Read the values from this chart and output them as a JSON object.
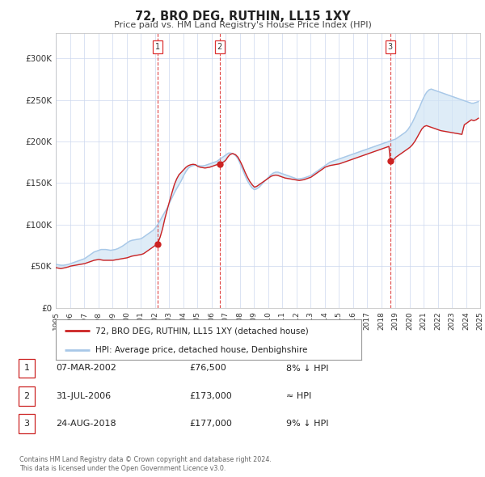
{
  "title": "72, BRO DEG, RUTHIN, LL15 1XY",
  "subtitle": "Price paid vs. HM Land Registry's House Price Index (HPI)",
  "hpi_color": "#a8c8e8",
  "price_color": "#cc2222",
  "background_color": "#ffffff",
  "plot_bg_color": "#ffffff",
  "grid_color": "#ccd8ee",
  "ylim": [
    0,
    330000
  ],
  "yticks": [
    0,
    50000,
    100000,
    150000,
    200000,
    250000,
    300000
  ],
  "ytick_labels": [
    "£0",
    "£50K",
    "£100K",
    "£150K",
    "£200K",
    "£250K",
    "£300K"
  ],
  "sale_dates_num": [
    2002.19,
    2006.58,
    2018.65
  ],
  "sale_prices": [
    76500,
    173000,
    177000
  ],
  "vline_x": [
    2002.19,
    2006.58,
    2018.65
  ],
  "vline_labels": [
    "1",
    "2",
    "3"
  ],
  "legend_line1": "72, BRO DEG, RUTHIN, LL15 1XY (detached house)",
  "legend_line2": "HPI: Average price, detached house, Denbighshire",
  "table_rows": [
    {
      "num": "1",
      "date": "07-MAR-2002",
      "price": "£76,500",
      "rel": "8% ↓ HPI"
    },
    {
      "num": "2",
      "date": "31-JUL-2006",
      "price": "£173,000",
      "rel": "≈ HPI"
    },
    {
      "num": "3",
      "date": "24-AUG-2018",
      "price": "£177,000",
      "rel": "9% ↓ HPI"
    }
  ],
  "footnote1": "Contains HM Land Registry data © Crown copyright and database right 2024.",
  "footnote2": "This data is licensed under the Open Government Licence v3.0.",
  "hpi_data_years": [
    1995.04,
    1995.21,
    1995.38,
    1995.54,
    1995.71,
    1995.88,
    1996.04,
    1996.21,
    1996.38,
    1996.54,
    1996.71,
    1996.88,
    1997.04,
    1997.21,
    1997.38,
    1997.54,
    1997.71,
    1997.88,
    1998.04,
    1998.21,
    1998.38,
    1998.54,
    1998.71,
    1998.88,
    1999.04,
    1999.21,
    1999.38,
    1999.54,
    1999.71,
    1999.88,
    2000.04,
    2000.21,
    2000.38,
    2000.54,
    2000.71,
    2000.88,
    2001.04,
    2001.21,
    2001.38,
    2001.54,
    2001.71,
    2001.88,
    2002.04,
    2002.21,
    2002.38,
    2002.54,
    2002.71,
    2002.88,
    2003.04,
    2003.21,
    2003.38,
    2003.54,
    2003.71,
    2003.88,
    2004.04,
    2004.21,
    2004.38,
    2004.54,
    2004.71,
    2004.88,
    2005.04,
    2005.21,
    2005.38,
    2005.54,
    2005.71,
    2005.88,
    2006.04,
    2006.21,
    2006.38,
    2006.54,
    2006.71,
    2006.88,
    2007.04,
    2007.21,
    2007.38,
    2007.54,
    2007.71,
    2007.88,
    2008.04,
    2008.21,
    2008.38,
    2008.54,
    2008.71,
    2008.88,
    2009.04,
    2009.21,
    2009.38,
    2009.54,
    2009.71,
    2009.88,
    2010.04,
    2010.21,
    2010.38,
    2010.54,
    2010.71,
    2010.88,
    2011.04,
    2011.21,
    2011.38,
    2011.54,
    2011.71,
    2011.88,
    2012.04,
    2012.21,
    2012.38,
    2012.54,
    2012.71,
    2012.88,
    2013.04,
    2013.21,
    2013.38,
    2013.54,
    2013.71,
    2013.88,
    2014.04,
    2014.21,
    2014.38,
    2014.54,
    2014.71,
    2014.88,
    2015.04,
    2015.21,
    2015.38,
    2015.54,
    2015.71,
    2015.88,
    2016.04,
    2016.21,
    2016.38,
    2016.54,
    2016.71,
    2016.88,
    2017.04,
    2017.21,
    2017.38,
    2017.54,
    2017.71,
    2017.88,
    2018.04,
    2018.21,
    2018.38,
    2018.54,
    2018.71,
    2018.88,
    2019.04,
    2019.21,
    2019.38,
    2019.54,
    2019.71,
    2019.88,
    2020.04,
    2020.21,
    2020.38,
    2020.54,
    2020.71,
    2020.88,
    2021.04,
    2021.21,
    2021.38,
    2021.54,
    2021.71,
    2021.88,
    2022.04,
    2022.21,
    2022.38,
    2022.54,
    2022.71,
    2022.88,
    2023.04,
    2023.21,
    2023.38,
    2023.54,
    2023.71,
    2023.88,
    2024.04,
    2024.21,
    2024.38,
    2024.54,
    2024.71,
    2024.88
  ],
  "hpi_data_values": [
    52000,
    51500,
    51000,
    51000,
    51500,
    52000,
    53000,
    54000,
    55000,
    56000,
    57000,
    58000,
    59000,
    61000,
    63000,
    65000,
    67000,
    68000,
    69000,
    70000,
    70000,
    70000,
    69500,
    69000,
    69500,
    70000,
    71000,
    72500,
    74000,
    76000,
    78000,
    80000,
    81000,
    81500,
    82000,
    82500,
    83000,
    85000,
    87000,
    89000,
    91000,
    93000,
    96000,
    100000,
    105000,
    110000,
    115000,
    120000,
    126000,
    132000,
    138000,
    143000,
    148000,
    153000,
    159000,
    164000,
    168000,
    170000,
    171000,
    171500,
    171000,
    170500,
    170500,
    171000,
    172000,
    173000,
    174000,
    175000,
    176000,
    178000,
    180000,
    182000,
    184000,
    186000,
    186000,
    185000,
    183000,
    179000,
    173000,
    166000,
    159000,
    153000,
    148000,
    144000,
    142000,
    143000,
    145000,
    148000,
    151000,
    154000,
    157000,
    160000,
    162000,
    163000,
    163000,
    162000,
    161000,
    160000,
    159000,
    158000,
    157000,
    156000,
    155000,
    155000,
    155500,
    156000,
    157000,
    158000,
    159000,
    161000,
    163000,
    165000,
    167000,
    169000,
    171000,
    173000,
    175000,
    176000,
    177000,
    178000,
    179000,
    180000,
    181000,
    182000,
    183000,
    184000,
    185000,
    186000,
    187000,
    188000,
    189000,
    190000,
    191000,
    192000,
    193000,
    194000,
    195000,
    196000,
    197000,
    198000,
    199000,
    200000,
    201000,
    202000,
    203000,
    205000,
    207000,
    209000,
    211000,
    214000,
    218000,
    223000,
    229000,
    235000,
    241000,
    248000,
    254000,
    259000,
    262000,
    263000,
    262000,
    261000,
    260000,
    259000,
    258000,
    257000,
    256000,
    255000,
    254000,
    253000,
    252000,
    251000,
    250000,
    249000,
    248000,
    247000,
    246000,
    246000,
    247000,
    248000
  ],
  "price_data_years": [
    1995.04,
    1995.2,
    1995.35,
    1995.5,
    1995.65,
    1995.88,
    1996.04,
    1996.2,
    1996.38,
    1996.55,
    1996.7,
    1996.88,
    1997.04,
    1997.21,
    1997.38,
    1997.55,
    1997.71,
    1997.88,
    1998.04,
    1998.21,
    1998.38,
    1998.55,
    1998.71,
    1998.88,
    1999.04,
    1999.21,
    1999.38,
    1999.55,
    1999.71,
    1999.88,
    2000.04,
    2000.21,
    2000.38,
    2000.55,
    2000.71,
    2000.88,
    2001.04,
    2001.21,
    2001.38,
    2001.55,
    2001.71,
    2001.88,
    2002.04,
    2002.19,
    2002.38,
    2002.55,
    2002.71,
    2002.88,
    2003.04,
    2003.21,
    2003.38,
    2003.55,
    2003.71,
    2003.88,
    2004.04,
    2004.21,
    2004.38,
    2004.55,
    2004.71,
    2004.88,
    2005.04,
    2005.21,
    2005.38,
    2005.55,
    2005.71,
    2005.88,
    2006.04,
    2006.21,
    2006.38,
    2006.58,
    2006.71,
    2006.88,
    2007.04,
    2007.15,
    2007.3,
    2007.5,
    2007.71,
    2007.88,
    2008.04,
    2008.21,
    2008.38,
    2008.55,
    2008.71,
    2008.88,
    2009.04,
    2009.21,
    2009.38,
    2009.55,
    2009.71,
    2009.88,
    2010.04,
    2010.21,
    2010.38,
    2010.55,
    2010.71,
    2010.88,
    2011.04,
    2011.21,
    2011.38,
    2011.55,
    2011.71,
    2011.88,
    2012.04,
    2012.21,
    2012.38,
    2012.55,
    2012.71,
    2012.88,
    2013.04,
    2013.21,
    2013.38,
    2013.55,
    2013.71,
    2013.88,
    2014.04,
    2014.21,
    2014.38,
    2014.55,
    2014.71,
    2014.88,
    2015.04,
    2015.21,
    2015.38,
    2015.55,
    2015.71,
    2015.88,
    2016.04,
    2016.21,
    2016.38,
    2016.55,
    2016.71,
    2016.88,
    2017.04,
    2017.21,
    2017.38,
    2017.55,
    2017.71,
    2017.88,
    2018.04,
    2018.21,
    2018.38,
    2018.55,
    2018.65,
    2018.88,
    2019.04,
    2019.21,
    2019.38,
    2019.55,
    2019.71,
    2019.88,
    2020.04,
    2020.21,
    2020.38,
    2020.55,
    2020.71,
    2020.88,
    2021.04,
    2021.21,
    2021.38,
    2021.55,
    2021.71,
    2021.88,
    2022.04,
    2022.21,
    2022.38,
    2022.55,
    2022.71,
    2022.88,
    2023.04,
    2023.21,
    2023.38,
    2023.55,
    2023.71,
    2023.88,
    2024.04,
    2024.21,
    2024.38,
    2024.55,
    2024.71,
    2024.88
  ],
  "price_data_values": [
    48000,
    47500,
    47000,
    47500,
    48000,
    49000,
    50000,
    50500,
    51000,
    51500,
    52000,
    52500,
    53000,
    54000,
    55000,
    56000,
    57000,
    57500,
    58000,
    57500,
    57000,
    57000,
    57000,
    57000,
    57000,
    57500,
    58000,
    58500,
    59000,
    59500,
    60000,
    61000,
    62000,
    62500,
    63000,
    63500,
    64000,
    65000,
    67000,
    69000,
    71000,
    73000,
    75000,
    76500,
    85000,
    95000,
    107000,
    118000,
    128000,
    138000,
    148000,
    155000,
    160000,
    163000,
    166000,
    169000,
    171000,
    172000,
    172500,
    172000,
    170000,
    169000,
    168500,
    168000,
    168500,
    169000,
    170000,
    171000,
    172000,
    173000,
    174000,
    175500,
    178000,
    181000,
    184000,
    185500,
    184000,
    181000,
    176000,
    170000,
    163000,
    157000,
    152000,
    148000,
    145000,
    146000,
    148000,
    150000,
    152000,
    154000,
    156000,
    158000,
    159000,
    159500,
    159000,
    158000,
    157000,
    156000,
    155500,
    155000,
    154500,
    154000,
    153500,
    153000,
    153500,
    154000,
    155000,
    156000,
    157000,
    159000,
    161000,
    163000,
    165000,
    167000,
    169000,
    170000,
    171000,
    171500,
    172000,
    172500,
    173000,
    174000,
    175000,
    176000,
    177000,
    178000,
    179000,
    180000,
    181000,
    182000,
    183000,
    184000,
    185000,
    186000,
    187000,
    188000,
    189000,
    190000,
    191000,
    192000,
    193000,
    194000,
    177000,
    178000,
    181000,
    183000,
    185000,
    187000,
    189000,
    191000,
    193000,
    196000,
    200000,
    205000,
    210000,
    215000,
    218000,
    219000,
    218000,
    217000,
    216000,
    215000,
    214000,
    213000,
    212500,
    212000,
    211500,
    211000,
    210500,
    210000,
    209500,
    209000,
    208500,
    220000,
    222000,
    224000,
    226000,
    225000,
    226000,
    228000
  ]
}
